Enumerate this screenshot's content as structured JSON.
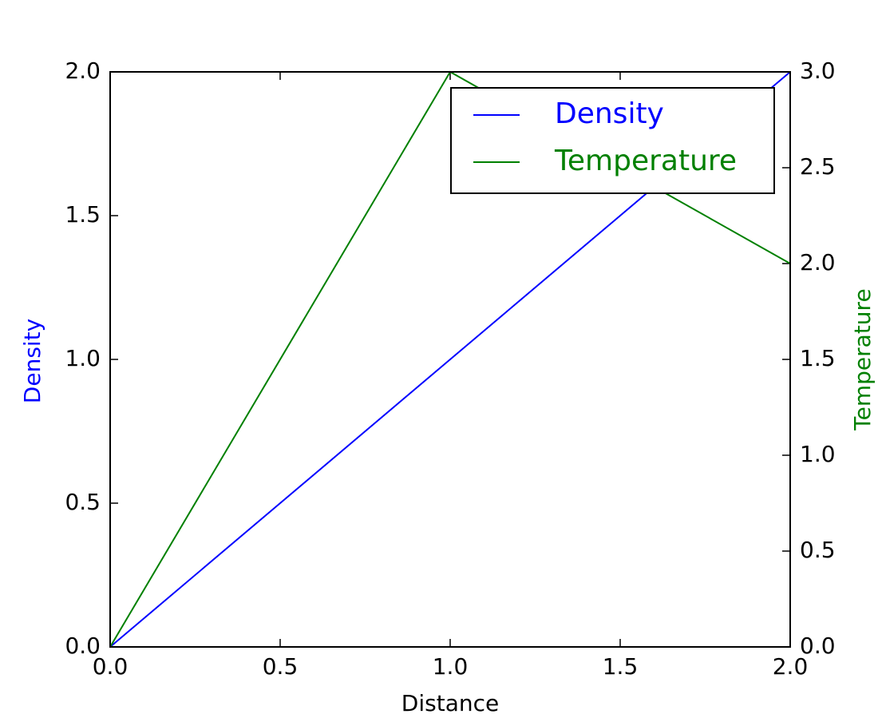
{
  "chart_data": {
    "type": "line",
    "xlabel": "Distance",
    "ylabel": "Density",
    "y2label": "Temperature",
    "x": [
      0,
      1,
      2
    ],
    "series": [
      {
        "name": "Density",
        "color": "#0000ff",
        "values": [
          0,
          1,
          2
        ]
      },
      {
        "name": "Temperature",
        "color": "#008000",
        "values": [
          0,
          3,
          2
        ],
        "axis": "y2"
      }
    ],
    "xlim": [
      0,
      2
    ],
    "xticks": [
      {
        "value": 0,
        "label": "0.0"
      },
      0.5,
      {
        "value": 1,
        "label": "1.0"
      },
      1.5,
      {
        "value": 2,
        "label": "2.0"
      }
    ],
    "ylim": [
      0,
      2
    ],
    "yticks": [
      {
        "value": 0,
        "label": "0.0"
      },
      0.5,
      {
        "value": 1,
        "label": "1.0"
      },
      1.5,
      {
        "value": 2,
        "label": "2.0"
      }
    ],
    "y2lim": [
      0,
      3
    ],
    "y2ticks": [
      {
        "value": 0,
        "label": "0.0"
      },
      0.5,
      {
        "value": 1,
        "label": "1.0"
      },
      1.5,
      {
        "value": 2,
        "label": "2.0"
      },
      2.5,
      {
        "value": 3,
        "label": "3.0"
      }
    ],
    "legend": "upper right",
    "grid": false
  }
}
